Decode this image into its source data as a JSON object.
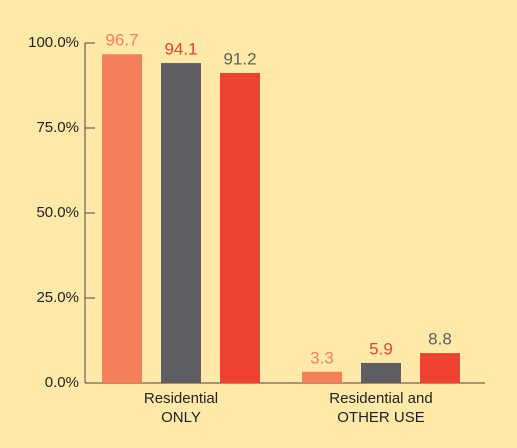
{
  "chart_data": {
    "type": "bar",
    "categories": [
      "Residential ONLY",
      "Residential and OTHER USE"
    ],
    "series": [
      {
        "color": "#f4805a",
        "label_color": "#f4805a",
        "values": [
          96.7,
          3.3
        ]
      },
      {
        "color": "#5e5e62",
        "label_color": "#ee4330",
        "values": [
          94.1,
          5.9
        ]
      },
      {
        "color": "#ee4330",
        "label_color": "#5e5e62",
        "values": [
          91.2,
          8.8
        ]
      }
    ],
    "ylim": [
      0,
      100
    ],
    "yticks": [
      {
        "value": 0,
        "label": "0.0%"
      },
      {
        "value": 25,
        "label": "25.0%"
      },
      {
        "value": 50,
        "label": "50.0%"
      },
      {
        "value": 75,
        "label": "75.0%"
      },
      {
        "value": 100,
        "label": "100.0%"
      }
    ],
    "grid": false
  }
}
